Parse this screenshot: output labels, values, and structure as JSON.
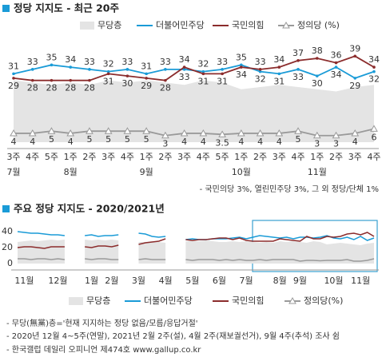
{
  "chart_data": [
    {
      "type": "line",
      "title": "정당 지지도 - 최근 20주",
      "categories": [
        "3주",
        "4주",
        "5주",
        "1주",
        "2주",
        "3주",
        "4주",
        "1주",
        "2주",
        "3주",
        "4주",
        "5주",
        "1주",
        "2주",
        "3주",
        "4주",
        "1주",
        "2주",
        "3주",
        "4주"
      ],
      "months": [
        "7월",
        null,
        null,
        "8월",
        null,
        null,
        null,
        "9월",
        null,
        null,
        null,
        null,
        "10월",
        null,
        null,
        null,
        "11월",
        null,
        null,
        null
      ],
      "ylim": [
        0,
        42
      ],
      "series": [
        {
          "name": "무당층",
          "color": "#e4e4e4",
          "style": "area",
          "values": [
            28,
            27,
            26,
            27,
            26,
            28,
            27,
            28,
            27,
            26,
            28,
            27,
            24,
            25,
            26,
            25,
            24,
            23,
            25,
            26
          ]
        },
        {
          "name": "더불어민주당",
          "color": "#1a9bd7",
          "style": "line",
          "values": [
            31,
            33,
            35,
            34,
            33,
            32,
            33,
            31,
            33,
            33,
            32,
            33,
            35,
            32,
            31,
            33,
            30,
            34,
            29,
            32
          ]
        },
        {
          "name": "국민의힘",
          "color": "#8b2c2c",
          "style": "line",
          "values": [
            29,
            28,
            28,
            28,
            28,
            31,
            30,
            29,
            28,
            34,
            31,
            31,
            34,
            33,
            34,
            37,
            38,
            36,
            39,
            34
          ]
        },
        {
          "name": "정의당 (%)",
          "color": "#9a9a9a",
          "style": "triangle",
          "values": [
            4,
            4,
            5,
            4,
            5,
            5,
            5,
            5,
            3,
            4,
            4,
            3.5,
            4,
            4,
            4,
            5,
            3,
            3,
            4,
            6
          ]
        }
      ],
      "note": "- 국민의당 3%, 열린민주당 3%, 그 외 정당/단체 1%"
    },
    {
      "type": "line",
      "title": "주요 정당 지지도 - 2020/2021년",
      "categories": [
        null,
        "11월",
        null,
        null,
        null,
        null,
        "12월",
        null,
        null,
        null,
        null,
        "1월",
        null,
        null,
        "2월",
        null,
        null,
        null,
        "3월",
        null,
        null,
        null,
        "4월",
        null,
        null,
        null,
        "5월",
        null,
        null,
        null,
        "6월",
        null,
        null,
        null,
        "7월",
        null,
        null,
        null,
        null,
        "8월",
        null,
        null,
        "9월",
        null,
        null,
        null,
        null,
        "10월",
        null,
        null,
        null,
        "11월",
        null,
        null
      ],
      "ylim": [
        0,
        45
      ],
      "yticks": [
        0,
        20,
        40
      ],
      "grid": false,
      "series": [
        {
          "name": "무당층",
          "color": "#e4e4e4",
          "style": "area",
          "values": [
            27,
            28,
            29,
            28,
            29,
            30,
            29,
            30,
            null,
            null,
            30,
            29,
            30,
            29,
            30,
            29,
            null,
            null,
            27,
            27,
            28,
            27,
            26,
            null,
            null,
            28,
            29,
            28,
            29,
            28,
            27,
            27,
            28,
            27,
            28,
            27,
            26,
            27,
            26,
            28,
            27,
            28,
            27,
            26,
            28,
            27,
            24,
            25,
            26,
            25,
            24,
            23,
            25,
            26
          ]
        },
        {
          "name": "더불어민주당",
          "color": "#1a9bd7",
          "style": "line",
          "values": [
            40,
            39,
            38,
            38,
            37,
            36,
            36,
            35,
            null,
            null,
            35,
            36,
            34,
            35,
            35,
            36,
            null,
            null,
            38,
            37,
            34,
            33,
            34,
            null,
            null,
            30,
            31,
            30,
            30,
            31,
            31,
            31,
            32,
            33,
            31,
            33,
            35,
            34,
            33,
            32,
            33,
            31,
            33,
            33,
            32,
            33,
            35,
            32,
            31,
            33,
            30,
            34,
            29,
            32
          ]
        },
        {
          "name": "국민의힘",
          "color": "#8b2c2c",
          "style": "line",
          "values": [
            20,
            21,
            21,
            20,
            19,
            21,
            21,
            21,
            null,
            null,
            21,
            20,
            22,
            22,
            21,
            23,
            null,
            null,
            24,
            26,
            27,
            28,
            31,
            null,
            null,
            30,
            29,
            30,
            30,
            31,
            32,
            32,
            30,
            32,
            29,
            28,
            28,
            28,
            28,
            31,
            30,
            29,
            28,
            34,
            31,
            31,
            34,
            33,
            34,
            37,
            38,
            36,
            39,
            34
          ]
        },
        {
          "name": "정의당(%)",
          "color": "#9a9a9a",
          "style": "line",
          "values": [
            6,
            6,
            5,
            6,
            6,
            5,
            6,
            5,
            null,
            null,
            6,
            5,
            6,
            6,
            5,
            5,
            null,
            null,
            5,
            6,
            5,
            5,
            5,
            null,
            null,
            5,
            4,
            5,
            5,
            5,
            4,
            5,
            4,
            5,
            4,
            4,
            5,
            4,
            5,
            5,
            5,
            5,
            3,
            4,
            4,
            3.5,
            4,
            4,
            4,
            5,
            3,
            3,
            4,
            6
          ]
        }
      ],
      "notes": [
        "- 무당(無黨)층='현재 지지하는 정당 없음/모름/응답거절'",
        "- 2020년 12월 4~5주(연말), 2021년 2월 2주(설), 4월 2주(재보궐선거), 9월 4주(추석) 조사 쉼",
        "- 한국갤럽 데일리 오피니언 제474호 www.gallup.co.kr"
      ]
    }
  ]
}
